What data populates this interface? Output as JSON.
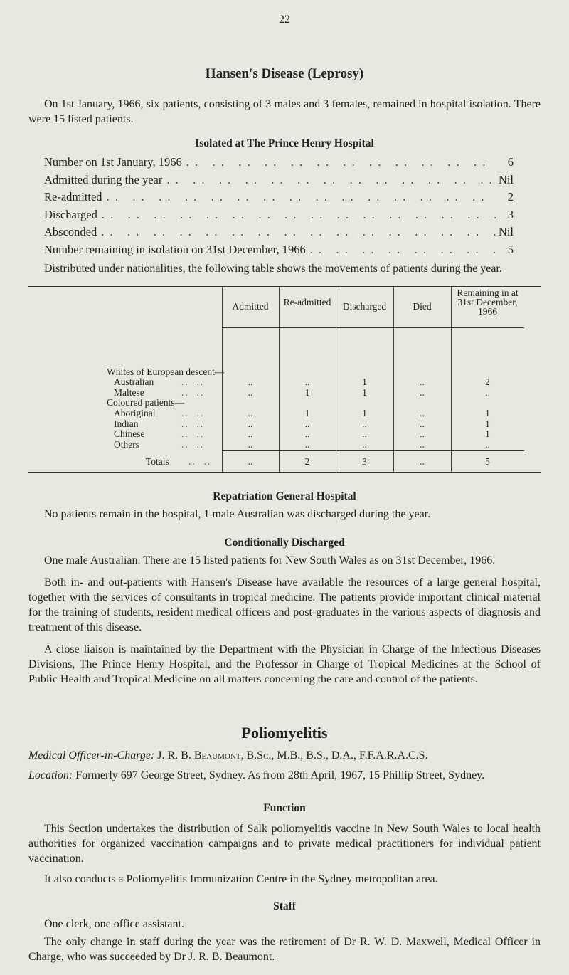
{
  "page_number": "22",
  "title": "Hansen's Disease (Leprosy)",
  "intro": "On 1st January, 1966, six patients, consisting of 3 males and 3 females, remained in hospital isolation. There were 15 listed patients.",
  "isolated": {
    "heading": "Isolated at The Prince Henry Hospital",
    "items": [
      {
        "label": "Number on 1st January, 1966",
        "value": "6"
      },
      {
        "label": "Admitted during the year",
        "value": "Nil"
      },
      {
        "label": "Re-admitted",
        "value": "2"
      },
      {
        "label": "Discharged",
        "value": "3"
      },
      {
        "label": "Absconded",
        "value": "Nil"
      },
      {
        "label": "Number remaining in isolation on 31st December, 1966",
        "value": "5"
      }
    ]
  },
  "distributed": "Distributed under nationalities, the following table shows the movements of patients during the year.",
  "table": {
    "headers": [
      "Admitted",
      "Re-admitted",
      "Discharged",
      "Died",
      "Remaining in at 31st December, 1966"
    ],
    "groups": [
      "Whites of European descent—",
      "Coloured patients—"
    ],
    "rows": [
      {
        "label": "Australian",
        "values": [
          "..",
          "..",
          "1",
          "..",
          "2"
        ]
      },
      {
        "label": "Maltese",
        "values": [
          "..",
          "1",
          "1",
          "..",
          ".."
        ]
      },
      {
        "label": "Aboriginal",
        "values": [
          "..",
          "1",
          "1",
          "..",
          "1"
        ]
      },
      {
        "label": "Indian",
        "values": [
          "..",
          "..",
          "..",
          "..",
          "1"
        ]
      },
      {
        "label": "Chinese",
        "values": [
          "..",
          "..",
          "..",
          "..",
          "1"
        ]
      },
      {
        "label": "Others",
        "values": [
          "..",
          "..",
          "..",
          "..",
          ".."
        ]
      }
    ],
    "totals": {
      "label": "Totals",
      "values": [
        "..",
        "2",
        "3",
        "..",
        "5"
      ]
    }
  },
  "repatriation": {
    "heading": "Repatriation General Hospital",
    "text": "No patients remain in the hospital, 1 male Australian was discharged during the year."
  },
  "conditional": {
    "heading": "Conditionally Discharged",
    "text": "One male Australian. There are 15 listed patients for New South Wales as on 31st December, 1966."
  },
  "para_both": "Both in- and out-patients with Hansen's Disease have available the resources of a large general hospital, together with the services of consultants in tropical medicine. The patients provide important clinical material for the training of students, resident medical officers and post-graduates in the various aspects of diagnosis and treatment of this disease.",
  "para_liaison": "A close liaison is maintained by the Department with the Physician in Charge of the Infectious Diseases Divisions, The Prince Henry Hospital, and the Professor in Charge of Tropical Medicines at the School of Public Health and Tropical Medicine on all matters concerning the care and control of the patients.",
  "polio": {
    "title": "Poliomyelitis",
    "officer_label": "Medical Officer-in-Charge:",
    "officer_value": "J. R. B. Beaumont, B.Sc., M.B., B.S., D.A., F.F.A.R.A.C.S.",
    "location_label": "Location:",
    "location_value": "Formerly 697 George Street, Sydney. As from 28th April, 1967, 15 Phillip Street, Sydney.",
    "function_heading": "Function",
    "function_text": "This Section undertakes the distribution of Salk poliomyelitis vaccine in New South Wales to local health authorities for organized vaccination campaigns and to private medical practitioners for individual patient vaccination.",
    "function_text2": "It also conducts a Poliomyelitis Immunization Centre in the Sydney metropolitan area.",
    "staff_heading": "Staff",
    "staff_text": "One clerk, one office assistant.",
    "staff_text2": "The only change in staff during the year was the retirement of Dr R. W. D. Maxwell, Medical Officer in Charge, who was succeeded by Dr J. R. B. Beaumont."
  }
}
